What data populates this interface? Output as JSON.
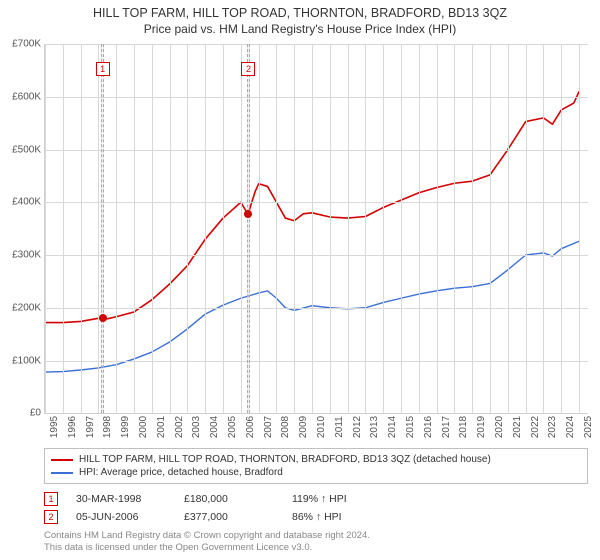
{
  "title_line1": "HILL TOP FARM, HILL TOP ROAD, THORNTON, BRADFORD, BD13 3QZ",
  "title_line2": "Price paid vs. HM Land Registry's House Price Index (HPI)",
  "chart": {
    "type": "line",
    "background_color": "#ffffff",
    "grid_color": "#d8d8d8",
    "axis_color": "#d0d0d0",
    "x_start": 1995,
    "x_end": 2025.5,
    "x_ticks": [
      1995,
      1996,
      1997,
      1998,
      1999,
      2000,
      2001,
      2002,
      2003,
      2004,
      2005,
      2006,
      2007,
      2008,
      2009,
      2010,
      2011,
      2012,
      2013,
      2014,
      2015,
      2016,
      2017,
      2018,
      2019,
      2020,
      2021,
      2022,
      2023,
      2024,
      2025
    ],
    "y_min": 0,
    "y_max": 700,
    "y_ticks": [
      0,
      100,
      200,
      300,
      400,
      500,
      600,
      700
    ],
    "y_tick_labels": [
      "£0",
      "£100K",
      "£200K",
      "£300K",
      "£400K",
      "£500K",
      "£600K",
      "£700K"
    ],
    "label_fontsize": 10,
    "label_color": "#555555",
    "series": [
      {
        "id": "property",
        "color": "#d40000",
        "width": 1.6,
        "points": [
          [
            1995,
            172
          ],
          [
            1996,
            172
          ],
          [
            1997,
            174
          ],
          [
            1998,
            180
          ],
          [
            1998.5,
            179
          ],
          [
            1999,
            183
          ],
          [
            2000,
            192
          ],
          [
            2001,
            215
          ],
          [
            2002,
            245
          ],
          [
            2003,
            280
          ],
          [
            2004,
            330
          ],
          [
            2005,
            370
          ],
          [
            2006,
            400
          ],
          [
            2006.4,
            377
          ],
          [
            2006.8,
            420
          ],
          [
            2007,
            435
          ],
          [
            2007.5,
            430
          ],
          [
            2008,
            400
          ],
          [
            2008.5,
            370
          ],
          [
            2009,
            365
          ],
          [
            2009.5,
            378
          ],
          [
            2010,
            380
          ],
          [
            2011,
            372
          ],
          [
            2012,
            370
          ],
          [
            2013,
            373
          ],
          [
            2014,
            390
          ],
          [
            2015,
            404
          ],
          [
            2016,
            418
          ],
          [
            2017,
            428
          ],
          [
            2018,
            436
          ],
          [
            2019,
            440
          ],
          [
            2020,
            452
          ],
          [
            2021,
            500
          ],
          [
            2022,
            553
          ],
          [
            2023,
            560
          ],
          [
            2023.5,
            548
          ],
          [
            2024,
            575
          ],
          [
            2024.7,
            588
          ],
          [
            2025,
            610
          ]
        ]
      },
      {
        "id": "hpi",
        "color": "#3a6fd8",
        "width": 1.4,
        "points": [
          [
            1995,
            78
          ],
          [
            1996,
            79
          ],
          [
            1997,
            82
          ],
          [
            1998,
            86
          ],
          [
            1999,
            92
          ],
          [
            2000,
            103
          ],
          [
            2001,
            116
          ],
          [
            2002,
            135
          ],
          [
            2003,
            160
          ],
          [
            2004,
            188
          ],
          [
            2005,
            205
          ],
          [
            2006,
            218
          ],
          [
            2007,
            228
          ],
          [
            2007.5,
            232
          ],
          [
            2008,
            218
          ],
          [
            2008.5,
            200
          ],
          [
            2009,
            195
          ],
          [
            2010,
            204
          ],
          [
            2011,
            200
          ],
          [
            2012,
            198
          ],
          [
            2013,
            200
          ],
          [
            2014,
            210
          ],
          [
            2015,
            218
          ],
          [
            2016,
            226
          ],
          [
            2017,
            232
          ],
          [
            2018,
            237
          ],
          [
            2019,
            240
          ],
          [
            2020,
            246
          ],
          [
            2021,
            272
          ],
          [
            2022,
            300
          ],
          [
            2023,
            304
          ],
          [
            2023.5,
            298
          ],
          [
            2024,
            312
          ],
          [
            2025,
            326
          ]
        ]
      }
    ],
    "sale_bands": [
      {
        "year": 1998.24,
        "width_years": 0.18
      },
      {
        "year": 2006.43,
        "width_years": 0.18
      }
    ],
    "sale_markers": [
      {
        "num": "1",
        "year": 1998.24,
        "y": 180,
        "color": "#d40000",
        "box_top_pct": 5
      },
      {
        "num": "2",
        "year": 2006.43,
        "y": 377,
        "color": "#d40000",
        "box_top_pct": 5
      }
    ]
  },
  "legend": {
    "items": [
      {
        "color": "#d40000",
        "label": "HILL TOP FARM, HILL TOP ROAD, THORNTON, BRADFORD, BD13 3QZ (detached house)"
      },
      {
        "color": "#3a6fd8",
        "label": "HPI: Average price, detached house, Bradford"
      }
    ]
  },
  "sales": [
    {
      "num": "1",
      "date": "30-MAR-1998",
      "price": "£180,000",
      "relative": "119% ↑ HPI"
    },
    {
      "num": "2",
      "date": "05-JUN-2006",
      "price": "£377,000",
      "relative": "86% ↑ HPI"
    }
  ],
  "footer_line1": "Contains HM Land Registry data © Crown copyright and database right 2024.",
  "footer_line2": "This data is licensed under the Open Government Licence v3.0."
}
